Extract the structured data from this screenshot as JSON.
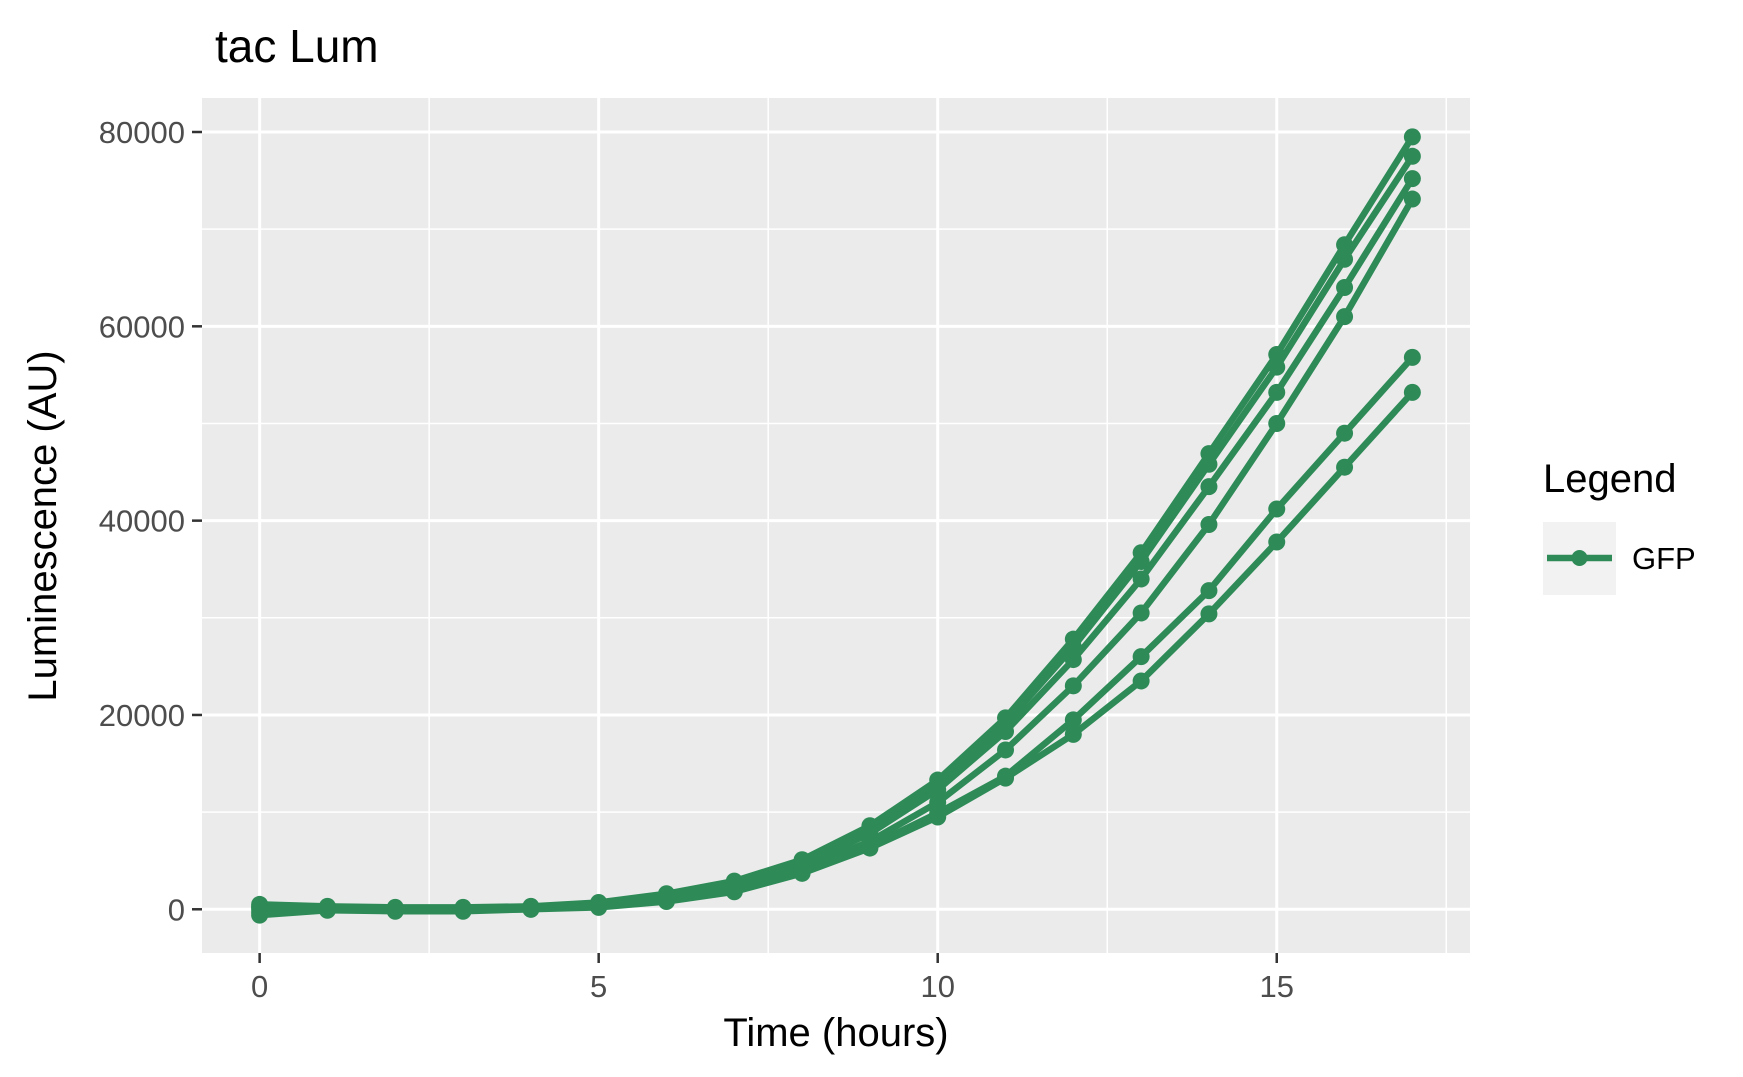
{
  "chart_data": {
    "type": "line",
    "title": "tac Lum",
    "xlabel": "Time (hours)",
    "ylabel": "Luminescence (AU)",
    "xlim": [
      -0.85,
      17.85
    ],
    "ylim": [
      -4500,
      83500
    ],
    "x_ticks": [
      0,
      5,
      10,
      15
    ],
    "x_tick_labels": [
      "0",
      "5",
      "10",
      "15"
    ],
    "y_ticks": [
      0,
      20000,
      40000,
      60000,
      80000
    ],
    "y_tick_labels": [
      "0",
      "20000",
      "40000",
      "60000",
      "80000"
    ],
    "grid": true,
    "legend": {
      "title": "Legend",
      "position": "right",
      "entries": [
        {
          "label": "GFP",
          "color": "#2e8b57"
        }
      ]
    },
    "color": "#2e8b57",
    "x": [
      0,
      1,
      2,
      3,
      4,
      5,
      6,
      7,
      8,
      9,
      10,
      11,
      12,
      13,
      14,
      15,
      16,
      17
    ],
    "series": [
      {
        "values": [
          500,
          300,
          200,
          200,
          300,
          700,
          1600,
          2900,
          5100,
          8600,
          13300,
          19700,
          27800,
          36700,
          46900,
          57100,
          68400,
          79500
        ]
      },
      {
        "values": [
          300,
          200,
          100,
          100,
          200,
          600,
          1500,
          2800,
          4900,
          8300,
          12900,
          19100,
          27000,
          35800,
          45800,
          55800,
          66900,
          77500
        ]
      },
      {
        "values": [
          200,
          100,
          0,
          0,
          100,
          500,
          1300,
          2500,
          4500,
          7800,
          12300,
          18300,
          25700,
          34000,
          43500,
          53200,
          64000,
          75200
        ]
      },
      {
        "values": [
          0,
          0,
          -100,
          -100,
          0,
          400,
          1100,
          2200,
          4100,
          7000,
          11000,
          16400,
          23000,
          30500,
          39600,
          50000,
          61000,
          73100
        ]
      },
      {
        "values": [
          -300,
          0,
          -100,
          -100,
          100,
          300,
          900,
          1900,
          3800,
          6500,
          9900,
          13700,
          19500,
          26000,
          32800,
          41200,
          49000,
          56800
        ]
      },
      {
        "values": [
          -600,
          -100,
          -200,
          -200,
          0,
          200,
          800,
          1800,
          3700,
          6300,
          9500,
          13500,
          18000,
          23500,
          30400,
          37800,
          45500,
          53200
        ]
      }
    ]
  }
}
